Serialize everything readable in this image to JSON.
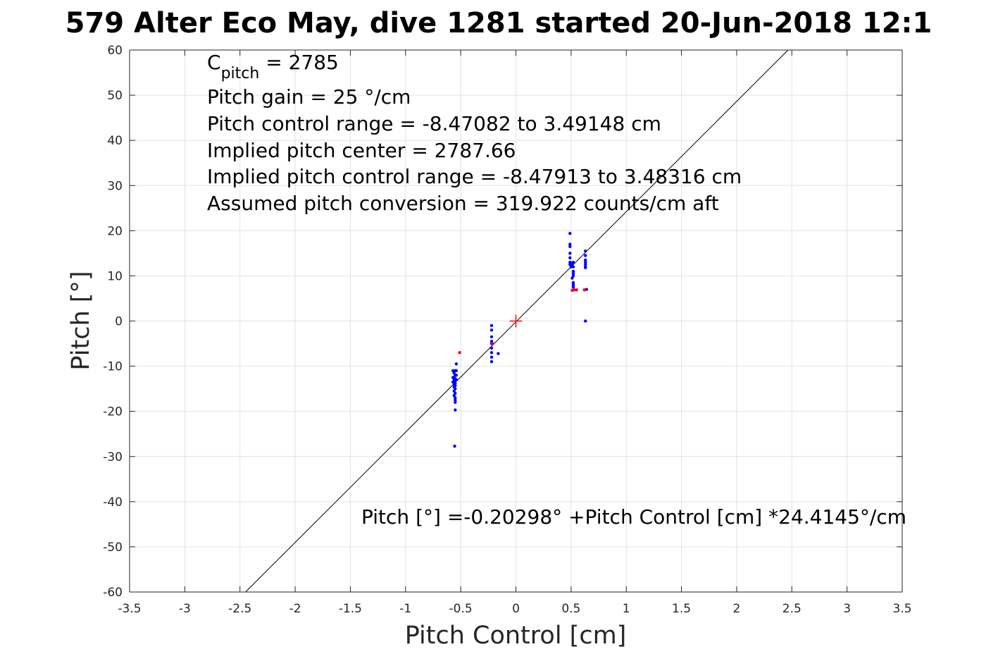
{
  "chart_data": {
    "type": "scatter",
    "title": "579 Alter Eco May, dive 1281 started 20-Jun-2018 12:1",
    "xlabel": "Pitch Control [cm]",
    "ylabel": "Pitch [°]",
    "xlim": [
      -3.5,
      3.5
    ],
    "ylim": [
      -60,
      60
    ],
    "grid": true,
    "x_ticks": [
      -3.5,
      -3,
      -2.5,
      -2,
      -1.5,
      -1,
      -0.5,
      0,
      0.5,
      1,
      1.5,
      2,
      2.5,
      3,
      3.5
    ],
    "x_tick_labels": [
      "-3.5",
      "-3",
      "-2.5",
      "-2",
      "-1.5",
      "-1",
      "-0.5",
      "0",
      "0.5",
      "1",
      "1.5",
      "2",
      "2.5",
      "3",
      "3.5"
    ],
    "y_ticks": [
      60,
      50,
      40,
      30,
      20,
      10,
      0,
      -10,
      -20,
      -30,
      -40,
      -50,
      -60
    ],
    "y_tick_labels": [
      "60",
      "50",
      "40",
      "30",
      "20",
      "10",
      "0",
      "-10",
      "-20",
      "-30",
      "-40",
      "-50",
      "-60"
    ],
    "fit_line": {
      "intercept": -0.20298,
      "slope": 24.4145,
      "color": "#000000"
    },
    "center_marker": {
      "x": 0,
      "y": 0,
      "color": "#ff0000"
    },
    "annotations": {
      "c_pitch_symbol": "C",
      "c_pitch_subscript": "pitch",
      "c_pitch_rest": " = 2785",
      "lines": [
        "Pitch gain = 25 °/cm",
        "Pitch control range = -8.47082 to 3.49148 cm",
        "Implied pitch center = 2787.66",
        "Implied pitch control range = -8.47913 to 3.48316 cm",
        "Assumed pitch conversion = 319.922 counts/cm aft"
      ],
      "fit_equation": "Pitch [°] =-0.20298° +Pitch Control [cm] *24.4145°/cm"
    },
    "series": [
      {
        "color": "#0000ff",
        "points": [
          [
            -0.55,
            -11.0
          ],
          [
            -0.56,
            -11.5
          ],
          [
            -0.55,
            -12.0
          ],
          [
            -0.56,
            -12.5
          ],
          [
            -0.55,
            -12.8
          ],
          [
            -0.56,
            -13.0
          ],
          [
            -0.55,
            -13.2
          ],
          [
            -0.56,
            -13.5
          ],
          [
            -0.55,
            -13.8
          ],
          [
            -0.56,
            -14.0
          ],
          [
            -0.55,
            -14.3
          ],
          [
            -0.56,
            -14.6
          ],
          [
            -0.55,
            -15.0
          ],
          [
            -0.56,
            -15.5
          ],
          [
            -0.55,
            -16.0
          ],
          [
            -0.56,
            -16.5
          ],
          [
            -0.55,
            -17.0
          ],
          [
            -0.55,
            -17.5
          ],
          [
            -0.55,
            -18.0
          ],
          [
            -0.54,
            -11.0
          ],
          [
            -0.54,
            -12.0
          ],
          [
            -0.54,
            -13.0
          ],
          [
            -0.54,
            -9.5
          ],
          [
            -0.57,
            -11.0
          ],
          [
            -0.57,
            -12.5
          ],
          [
            -0.57,
            -13.5
          ],
          [
            -0.55,
            -19.7
          ],
          [
            -0.555,
            -27.7
          ],
          [
            -0.22,
            -1.0
          ],
          [
            -0.22,
            -2.0
          ],
          [
            -0.22,
            -3.5
          ],
          [
            -0.22,
            -4.5
          ],
          [
            -0.22,
            -5.0
          ],
          [
            -0.22,
            -6.0
          ],
          [
            -0.22,
            -7.0
          ],
          [
            -0.22,
            -8.0
          ],
          [
            -0.22,
            -9.0
          ],
          [
            -0.16,
            -7.2
          ],
          [
            0.49,
            19.4
          ],
          [
            0.49,
            17.0
          ],
          [
            0.49,
            16.5
          ],
          [
            0.49,
            15.0
          ],
          [
            0.49,
            14.0
          ],
          [
            0.49,
            13.0
          ],
          [
            0.49,
            12.5
          ],
          [
            0.5,
            12.8
          ],
          [
            0.51,
            12.5
          ],
          [
            0.5,
            12.0
          ],
          [
            0.52,
            13.0
          ],
          [
            0.52,
            12.0
          ],
          [
            0.52,
            11.0
          ],
          [
            0.52,
            10.5
          ],
          [
            0.52,
            10.0
          ],
          [
            0.51,
            9.5
          ],
          [
            0.52,
            8.5
          ],
          [
            0.52,
            8.0
          ],
          [
            0.52,
            7.5
          ],
          [
            0.63,
            15.5
          ],
          [
            0.63,
            14.5
          ],
          [
            0.63,
            13.5
          ],
          [
            0.63,
            13.0
          ],
          [
            0.63,
            12.5
          ],
          [
            0.63,
            12.0
          ],
          [
            0.63,
            11.8
          ],
          [
            0.64,
            7.0
          ],
          [
            0.63,
            0.0
          ]
        ]
      },
      {
        "color": "#ff0000",
        "points": [
          [
            -0.51,
            -7.0
          ],
          [
            -0.21,
            -5.0
          ],
          [
            0.51,
            6.8
          ],
          [
            0.53,
            6.9
          ],
          [
            0.55,
            6.9
          ],
          [
            0.62,
            6.9
          ]
        ]
      }
    ]
  }
}
